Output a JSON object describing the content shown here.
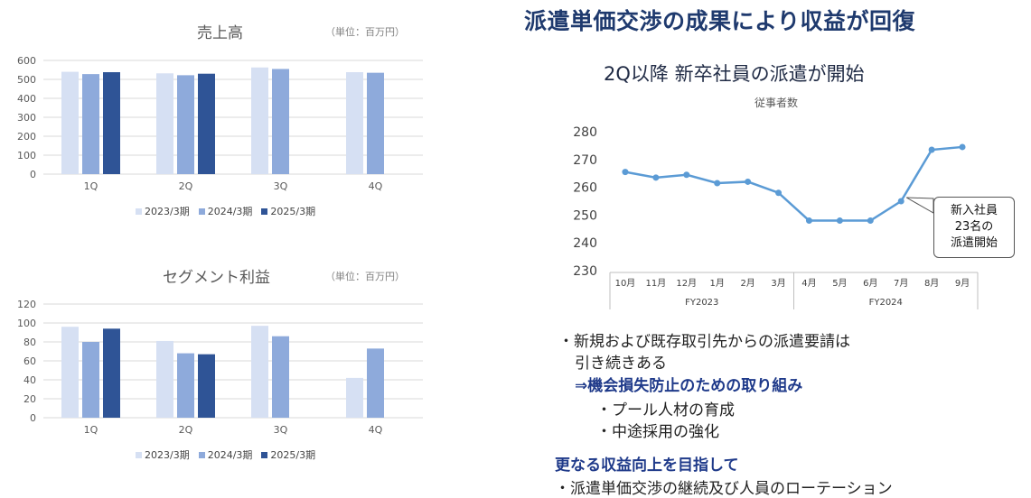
{
  "heading": "派遣単価交渉の成果により収益が回復",
  "sales": {
    "title": "売上高",
    "unit": "（単位：百万円）",
    "legend": [
      "2023/3期",
      "2024/3期",
      "2025/3期"
    ],
    "colors": [
      "#d6e0f3",
      "#8eaadb",
      "#2f5496"
    ]
  },
  "segment": {
    "title": "セグメント利益",
    "unit": "（単位：百万円）",
    "legend": [
      "2023/3期",
      "2024/3期",
      "2025/3期"
    ],
    "colors": [
      "#d6e0f3",
      "#8eaadb",
      "#2f5496"
    ]
  },
  "employees": {
    "subtitle": "2Q以降 新卒社員の派遣が開始",
    "caption": "従事者数",
    "callout_lines": [
      "新入社員",
      "23名の",
      "派遣開始"
    ],
    "line_color": "#5b9bd5"
  },
  "bullets": {
    "line1": "・新規および既存取引先からの派遣要請は",
    "line2": "引き続きある",
    "line3": "⇒機会損失防止のための取り組み",
    "line4": "・プール人材の育成",
    "line5": "・中途採用の強化",
    "line6": "更なる収益向上を目指して",
    "line7": "・派遣単価交渉の継続及び人員のローテーション"
  },
  "chart_data": [
    {
      "type": "bar",
      "title": "売上高",
      "categories": [
        "1Q",
        "2Q",
        "3Q",
        "4Q"
      ],
      "series": [
        {
          "name": "2023/3期",
          "values": [
            540,
            532,
            563,
            538
          ]
        },
        {
          "name": "2024/3期",
          "values": [
            528,
            522,
            555,
            535
          ]
        },
        {
          "name": "2025/3期",
          "values": [
            538,
            530,
            null,
            null
          ]
        }
      ],
      "ylim": [
        0,
        600
      ],
      "yticks": [
        0,
        100,
        200,
        300,
        400,
        500,
        600
      ],
      "grid": true,
      "legend": "bottom"
    },
    {
      "type": "bar",
      "title": "セグメント利益",
      "categories": [
        "1Q",
        "2Q",
        "3Q",
        "4Q"
      ],
      "series": [
        {
          "name": "2023/3期",
          "values": [
            96,
            81,
            97,
            42
          ]
        },
        {
          "name": "2024/3期",
          "values": [
            80,
            68,
            86,
            73
          ]
        },
        {
          "name": "2025/3期",
          "values": [
            94,
            67,
            null,
            null
          ]
        }
      ],
      "ylim": [
        0,
        120
      ],
      "yticks": [
        0,
        20,
        40,
        60,
        80,
        100,
        120
      ],
      "grid": true,
      "legend": "bottom"
    },
    {
      "type": "line",
      "title": "従事者数",
      "x": [
        "10月",
        "11月",
        "12月",
        "1月",
        "2月",
        "3月",
        "4月",
        "5月",
        "6月",
        "7月",
        "8月",
        "9月"
      ],
      "groups": [
        {
          "label": "FY2023",
          "months": [
            "10月",
            "11月",
            "12月",
            "1月",
            "2月",
            "3月"
          ]
        },
        {
          "label": "FY2024",
          "months": [
            "4月",
            "5月",
            "6月",
            "7月",
            "8月",
            "9月"
          ]
        }
      ],
      "series": [
        {
          "values": [
            265.5,
            263.5,
            264.5,
            261.5,
            262,
            258,
            248,
            248,
            248,
            255,
            273.5,
            274.5
          ]
        }
      ],
      "ylim": [
        230,
        280
      ],
      "yticks": [
        230,
        240,
        250,
        260,
        270,
        280
      ],
      "grid": false
    }
  ]
}
